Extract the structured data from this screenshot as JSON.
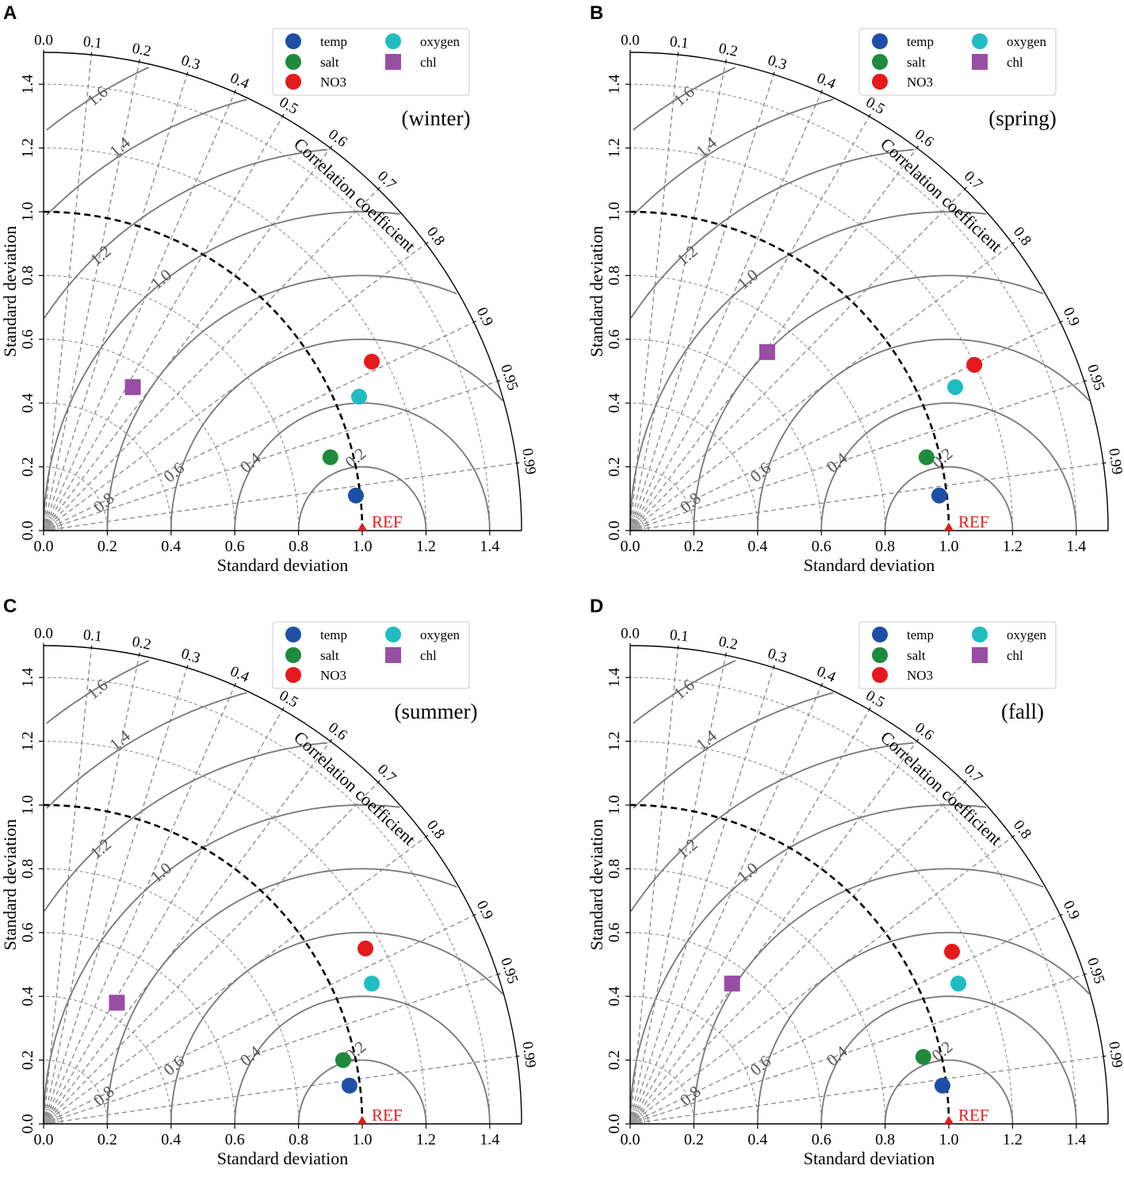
{
  "common": {
    "x_label": "Standard deviation",
    "y_label": "Standard deviation",
    "corr_label": "Correlation coefficient",
    "ref_label": "REF",
    "std_ticks": [
      "0.0",
      "0.2",
      "0.4",
      "0.6",
      "0.8",
      "1.0",
      "1.2",
      "1.4"
    ],
    "corr_ticks": [
      "0.0",
      "0.1",
      "0.2",
      "0.3",
      "0.4",
      "0.5",
      "0.6",
      "0.7",
      "0.8",
      "0.9",
      "0.95",
      "0.99"
    ],
    "rms_labels": [
      "0.2",
      "0.4",
      "0.6",
      "0.8",
      "1.0",
      "1.2",
      "1.4",
      "1.6"
    ],
    "colors": {
      "temp": "#1f4fa5",
      "salt": "#1e8a3c",
      "NO3": "#e41a1c",
      "oxygen": "#1fbdc1",
      "chl": "#984ea3",
      "ref": "#e41a1c"
    }
  },
  "legend": [
    {
      "name": "temp",
      "label": "temp",
      "marker": "circle"
    },
    {
      "name": "salt",
      "label": "salt",
      "marker": "circle"
    },
    {
      "name": "NO3",
      "label": "NO3",
      "marker": "circle"
    },
    {
      "name": "oxygen",
      "label": "oxygen",
      "marker": "circle"
    },
    {
      "name": "chl",
      "label": "chl",
      "marker": "square"
    }
  ],
  "chart_data": [
    {
      "type": "scatter",
      "subtype": "taylor-diagram",
      "panel": "A",
      "title": "(winter)",
      "xlabel": "Standard deviation",
      "ylabel": "Standard deviation",
      "std_range": [
        0,
        1.5
      ],
      "reference_std": 1.0,
      "points": [
        {
          "name": "temp",
          "x": 0.98,
          "y": 0.11
        },
        {
          "name": "salt",
          "x": 0.9,
          "y": 0.23
        },
        {
          "name": "NO3",
          "x": 1.03,
          "y": 0.53
        },
        {
          "name": "oxygen",
          "x": 0.99,
          "y": 0.42
        },
        {
          "name": "chl",
          "x": 0.28,
          "y": 0.45
        }
      ]
    },
    {
      "type": "scatter",
      "subtype": "taylor-diagram",
      "panel": "B",
      "title": "(spring)",
      "xlabel": "Standard deviation",
      "ylabel": "Standard deviation",
      "std_range": [
        0,
        1.5
      ],
      "reference_std": 1.0,
      "points": [
        {
          "name": "temp",
          "x": 0.97,
          "y": 0.11
        },
        {
          "name": "salt",
          "x": 0.93,
          "y": 0.23
        },
        {
          "name": "NO3",
          "x": 1.08,
          "y": 0.52
        },
        {
          "name": "oxygen",
          "x": 1.02,
          "y": 0.45
        },
        {
          "name": "chl",
          "x": 0.43,
          "y": 0.56
        }
      ]
    },
    {
      "type": "scatter",
      "subtype": "taylor-diagram",
      "panel": "C",
      "title": "(summer)",
      "xlabel": "Standard deviation",
      "ylabel": "Standard deviation",
      "std_range": [
        0,
        1.5
      ],
      "reference_std": 1.0,
      "points": [
        {
          "name": "temp",
          "x": 0.96,
          "y": 0.12
        },
        {
          "name": "salt",
          "x": 0.94,
          "y": 0.2
        },
        {
          "name": "NO3",
          "x": 1.01,
          "y": 0.55
        },
        {
          "name": "oxygen",
          "x": 1.03,
          "y": 0.44
        },
        {
          "name": "chl",
          "x": 0.23,
          "y": 0.38
        }
      ]
    },
    {
      "type": "scatter",
      "subtype": "taylor-diagram",
      "panel": "D",
      "title": "(fall)",
      "xlabel": "Standard deviation",
      "ylabel": "Standard deviation",
      "std_range": [
        0,
        1.5
      ],
      "reference_std": 1.0,
      "points": [
        {
          "name": "temp",
          "x": 0.98,
          "y": 0.12
        },
        {
          "name": "salt",
          "x": 0.92,
          "y": 0.21
        },
        {
          "name": "NO3",
          "x": 1.01,
          "y": 0.54
        },
        {
          "name": "oxygen",
          "x": 1.03,
          "y": 0.44
        },
        {
          "name": "chl",
          "x": 0.32,
          "y": 0.44
        }
      ]
    }
  ]
}
